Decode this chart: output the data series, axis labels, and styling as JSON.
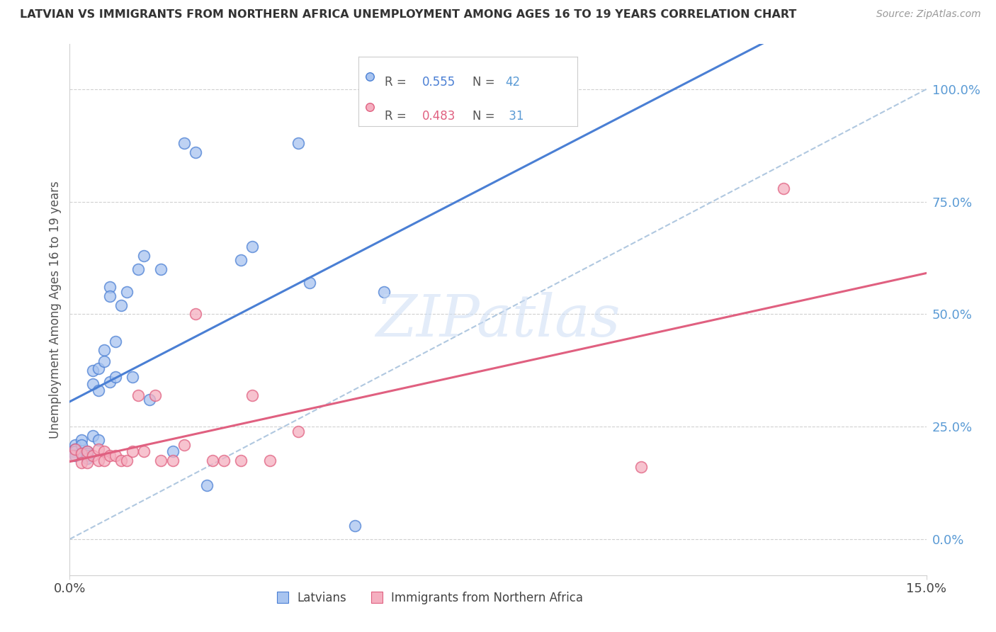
{
  "title": "LATVIAN VS IMMIGRANTS FROM NORTHERN AFRICA UNEMPLOYMENT AMONG AGES 16 TO 19 YEARS CORRELATION CHART",
  "source": "Source: ZipAtlas.com",
  "ylabel": "Unemployment Among Ages 16 to 19 years",
  "right_yticks": [
    0.0,
    0.25,
    0.5,
    0.75,
    1.0
  ],
  "right_yticklabels": [
    "0.0%",
    "25.0%",
    "50.0%",
    "75.0%",
    "100.0%"
  ],
  "latvian_color": "#a8c4f0",
  "immigrant_color": "#f5afc0",
  "latvian_line_color": "#4a7fd4",
  "immigrant_line_color": "#e06080",
  "ref_line_color": "#b0c8e0",
  "watermark": "ZIPatlas",
  "xmin": 0.0,
  "xmax": 0.15,
  "ymin": -0.08,
  "ymax": 1.1,
  "latvian_x": [
    0.0005,
    0.001,
    0.001,
    0.001,
    0.001,
    0.002,
    0.002,
    0.002,
    0.003,
    0.003,
    0.003,
    0.003,
    0.004,
    0.004,
    0.004,
    0.005,
    0.005,
    0.005,
    0.006,
    0.006,
    0.007,
    0.007,
    0.007,
    0.008,
    0.008,
    0.009,
    0.01,
    0.011,
    0.012,
    0.013,
    0.014,
    0.016,
    0.018,
    0.02,
    0.022,
    0.024,
    0.03,
    0.032,
    0.04,
    0.042,
    0.05,
    0.055
  ],
  "latvian_y": [
    0.195,
    0.21,
    0.2,
    0.195,
    0.185,
    0.22,
    0.21,
    0.19,
    0.195,
    0.19,
    0.185,
    0.18,
    0.375,
    0.345,
    0.23,
    0.38,
    0.33,
    0.22,
    0.42,
    0.395,
    0.56,
    0.54,
    0.35,
    0.36,
    0.44,
    0.52,
    0.55,
    0.36,
    0.6,
    0.63,
    0.31,
    0.6,
    0.195,
    0.88,
    0.86,
    0.12,
    0.62,
    0.65,
    0.88,
    0.57,
    0.03,
    0.55
  ],
  "immigrant_x": [
    0.0005,
    0.001,
    0.002,
    0.002,
    0.003,
    0.003,
    0.004,
    0.005,
    0.005,
    0.006,
    0.006,
    0.007,
    0.008,
    0.009,
    0.01,
    0.011,
    0.012,
    0.013,
    0.015,
    0.016,
    0.018,
    0.02,
    0.022,
    0.025,
    0.027,
    0.03,
    0.032,
    0.035,
    0.04,
    0.1,
    0.125
  ],
  "immigrant_y": [
    0.185,
    0.2,
    0.19,
    0.17,
    0.195,
    0.17,
    0.185,
    0.2,
    0.175,
    0.195,
    0.175,
    0.185,
    0.185,
    0.175,
    0.175,
    0.195,
    0.32,
    0.195,
    0.32,
    0.175,
    0.175,
    0.21,
    0.5,
    0.175,
    0.175,
    0.175,
    0.32,
    0.175,
    0.24,
    0.16,
    0.78
  ],
  "latvian_R": "0.555",
  "latvian_N": "42",
  "immigrant_R": "0.483",
  "immigrant_N": "31"
}
